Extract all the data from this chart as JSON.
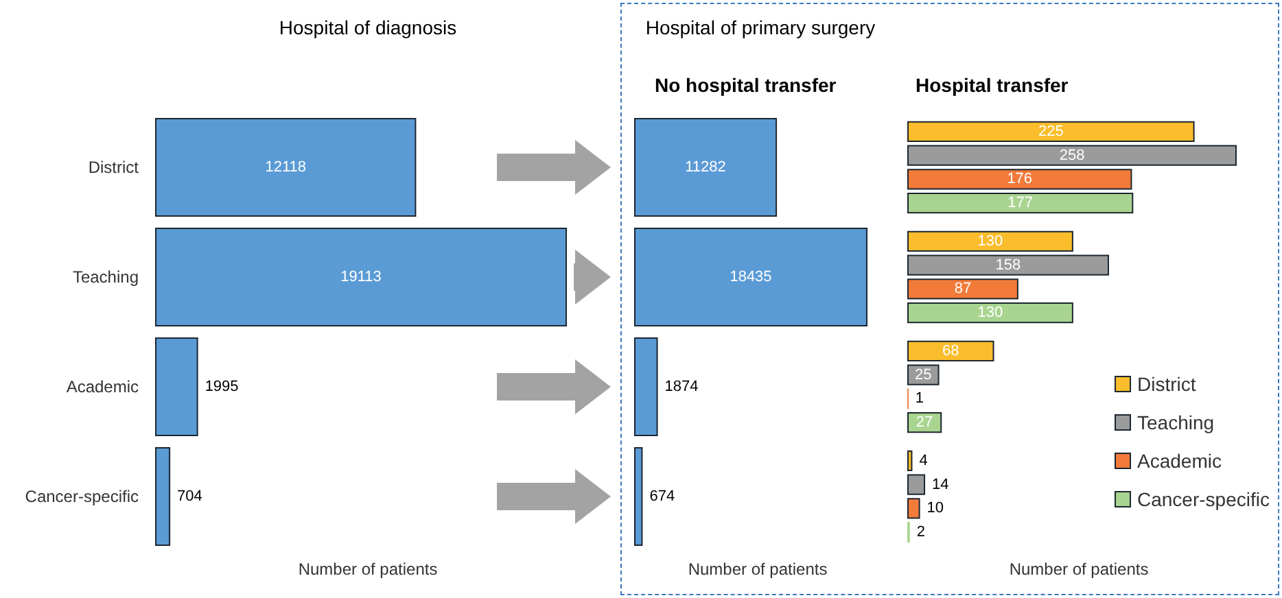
{
  "chart_data": [
    {
      "type": "bar",
      "orientation": "horizontal",
      "title": "Hospital of diagnosis",
      "xlabel": "Number of patients",
      "categories": [
        "District",
        "Teaching",
        "Academic",
        "Cancer-specific"
      ],
      "values": [
        12118,
        19113,
        1995,
        704
      ],
      "color": "#5b9bd5",
      "data_labels": true,
      "tick_labels": "y"
    },
    {
      "type": "bar",
      "orientation": "horizontal",
      "title": "Hospital of primary surgery",
      "subtitle": "No hospital transfer",
      "xlabel": "Number of patients",
      "categories": [
        null,
        null,
        null,
        null
      ],
      "values": [
        11282,
        18435,
        1874,
        674
      ],
      "color": "#5b9bd5",
      "data_labels": true,
      "tick_labels": false
    },
    {
      "type": "bar",
      "orientation": "horizontal",
      "title": "Hospital transfer",
      "xlabel": "Number of patients",
      "categories": [
        null,
        null,
        null,
        null
      ],
      "series": [
        {
          "name": "District",
          "color": "#fbbd2c",
          "values": [
            225,
            130,
            68,
            4
          ]
        },
        {
          "name": "Teaching",
          "color": "#9b9b9b",
          "values": [
            258,
            158,
            25,
            14
          ]
        },
        {
          "name": "Academic",
          "color": "#f27b3a",
          "values": [
            176,
            87,
            1,
            10
          ]
        },
        {
          "name": "Cancer-specific",
          "color": "#a8d490",
          "values": [
            177,
            130,
            27,
            2
          ]
        }
      ],
      "data_labels": true,
      "tick_labels": false,
      "legend": "right"
    }
  ]
}
